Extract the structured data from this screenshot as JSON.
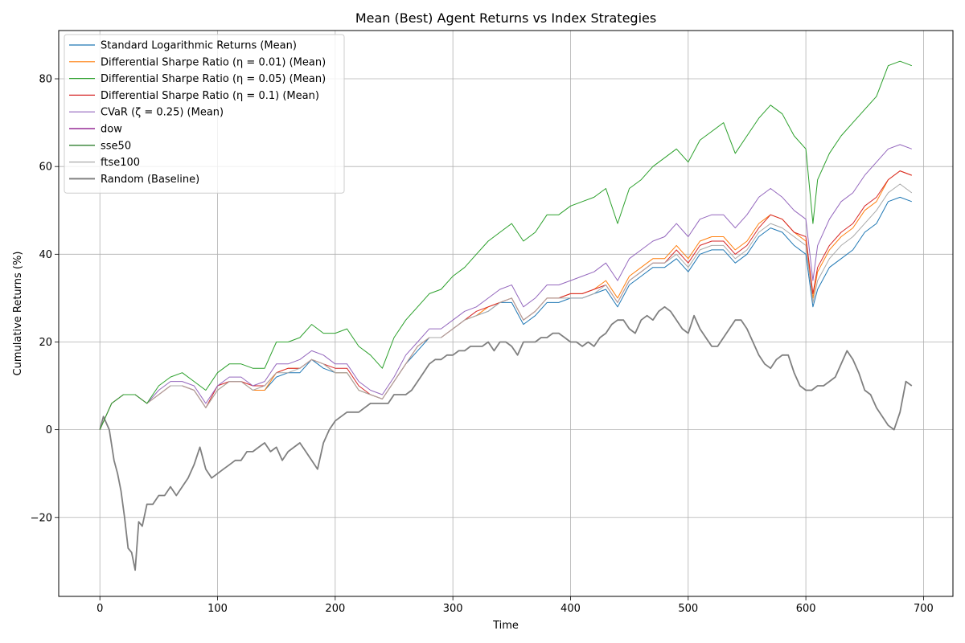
{
  "chart_data": {
    "type": "line",
    "title": "Mean (Best) Agent Returns vs Index Strategies",
    "xlabel": "Time",
    "ylabel": "Cumulative Returns (%)",
    "xlim": [
      -35,
      725
    ],
    "ylim": [
      -38,
      91
    ],
    "xticks": [
      0,
      100,
      200,
      300,
      400,
      500,
      600,
      700
    ],
    "yticks": [
      -20,
      0,
      20,
      40,
      60,
      80
    ],
    "grid": true,
    "legend_position": "top-left",
    "series": [
      {
        "name": "Standard Logarithmic Returns (Mean)",
        "color": "#1f77b4",
        "width": 1,
        "x": [
          0,
          5,
          10,
          20,
          30,
          40,
          50,
          60,
          70,
          80,
          90,
          100,
          110,
          120,
          130,
          140,
          150,
          160,
          170,
          180,
          190,
          200,
          210,
          220,
          230,
          240,
          250,
          260,
          270,
          280,
          290,
          300,
          310,
          320,
          330,
          340,
          350,
          360,
          370,
          380,
          390,
          400,
          410,
          420,
          430,
          440,
          450,
          460,
          470,
          480,
          490,
          500,
          510,
          520,
          530,
          540,
          550,
          560,
          570,
          580,
          590,
          600,
          606,
          610,
          620,
          630,
          640,
          650,
          660,
          670,
          680,
          690
        ],
        "values": [
          0,
          3,
          6,
          8,
          8,
          6,
          8,
          10,
          10,
          9,
          5,
          9,
          11,
          11,
          9,
          9,
          12,
          13,
          13,
          16,
          14,
          13,
          13,
          9,
          8,
          7,
          11,
          15,
          18,
          21,
          21,
          23,
          25,
          26,
          27,
          29,
          29,
          24,
          26,
          29,
          29,
          30,
          30,
          31,
          32,
          28,
          33,
          35,
          37,
          37,
          39,
          36,
          40,
          41,
          41,
          38,
          40,
          44,
          46,
          45,
          42,
          40,
          28,
          32,
          37,
          39,
          41,
          45,
          47,
          52,
          53,
          52
        ]
      },
      {
        "name": "Differential Sharpe Ratio (η = 0.01) (Mean)",
        "color": "#ff7f0e",
        "width": 1,
        "x": [
          0,
          5,
          10,
          20,
          30,
          40,
          50,
          60,
          70,
          80,
          90,
          100,
          110,
          120,
          130,
          140,
          150,
          160,
          170,
          180,
          190,
          200,
          210,
          220,
          230,
          240,
          250,
          260,
          270,
          280,
          290,
          300,
          310,
          320,
          330,
          340,
          350,
          360,
          370,
          380,
          390,
          400,
          410,
          420,
          430,
          440,
          450,
          460,
          470,
          480,
          490,
          500,
          510,
          520,
          530,
          540,
          550,
          560,
          570,
          580,
          590,
          600,
          606,
          610,
          620,
          630,
          640,
          650,
          660,
          670,
          680,
          690
        ],
        "values": [
          0,
          3,
          6,
          8,
          8,
          6,
          8,
          10,
          10,
          9,
          5,
          9,
          11,
          11,
          9,
          9,
          13,
          14,
          14,
          16,
          15,
          13,
          13,
          9,
          8,
          7,
          11,
          15,
          19,
          21,
          21,
          23,
          25,
          26,
          28,
          29,
          30,
          25,
          27,
          30,
          30,
          31,
          31,
          32,
          34,
          30,
          35,
          37,
          39,
          39,
          42,
          39,
          43,
          44,
          44,
          41,
          43,
          47,
          49,
          48,
          45,
          43,
          30,
          36,
          41,
          44,
          46,
          50,
          52,
          57,
          59,
          58
        ]
      },
      {
        "name": "Differential Sharpe Ratio (η = 0.05) (Mean)",
        "color": "#2ca02c",
        "width": 1,
        "x": [
          0,
          5,
          10,
          20,
          30,
          40,
          50,
          60,
          70,
          80,
          90,
          100,
          110,
          120,
          130,
          140,
          150,
          160,
          170,
          180,
          190,
          200,
          210,
          220,
          230,
          240,
          250,
          260,
          270,
          280,
          290,
          300,
          310,
          320,
          330,
          340,
          350,
          360,
          370,
          380,
          390,
          400,
          410,
          420,
          430,
          440,
          450,
          460,
          470,
          480,
          490,
          500,
          510,
          520,
          530,
          540,
          550,
          560,
          570,
          580,
          590,
          600,
          606,
          610,
          620,
          630,
          640,
          650,
          660,
          670,
          680,
          690
        ],
        "values": [
          0,
          3,
          6,
          8,
          8,
          6,
          10,
          12,
          13,
          11,
          9,
          13,
          15,
          15,
          14,
          14,
          20,
          20,
          21,
          24,
          22,
          22,
          23,
          19,
          17,
          14,
          21,
          25,
          28,
          31,
          32,
          35,
          37,
          40,
          43,
          45,
          47,
          43,
          45,
          49,
          49,
          51,
          52,
          53,
          55,
          47,
          55,
          57,
          60,
          62,
          64,
          61,
          66,
          68,
          70,
          63,
          67,
          71,
          74,
          72,
          67,
          64,
          47,
          57,
          63,
          67,
          70,
          73,
          76,
          83,
          84,
          83
        ]
      },
      {
        "name": "Differential Sharpe Ratio (η = 0.1) (Mean)",
        "color": "#d62728",
        "width": 1,
        "x": [
          0,
          5,
          10,
          20,
          30,
          40,
          50,
          60,
          70,
          80,
          90,
          100,
          110,
          120,
          130,
          140,
          150,
          160,
          170,
          180,
          190,
          200,
          210,
          220,
          230,
          240,
          250,
          260,
          270,
          280,
          290,
          300,
          310,
          320,
          330,
          340,
          350,
          360,
          370,
          380,
          390,
          400,
          410,
          420,
          430,
          440,
          450,
          460,
          470,
          480,
          490,
          500,
          510,
          520,
          530,
          540,
          550,
          560,
          570,
          580,
          590,
          600,
          606,
          610,
          620,
          630,
          640,
          650,
          660,
          670,
          680,
          690
        ],
        "values": [
          0,
          3,
          6,
          8,
          8,
          6,
          8,
          10,
          10,
          9,
          5,
          10,
          11,
          11,
          10,
          10,
          13,
          14,
          14,
          16,
          15,
          14,
          14,
          10,
          8,
          7,
          11,
          15,
          19,
          21,
          21,
          23,
          25,
          27,
          28,
          29,
          30,
          25,
          27,
          30,
          30,
          31,
          31,
          32,
          33,
          29,
          34,
          36,
          38,
          38,
          41,
          38,
          42,
          43,
          43,
          40,
          42,
          46,
          49,
          48,
          45,
          44,
          31,
          37,
          42,
          45,
          47,
          51,
          53,
          57,
          59,
          58
        ]
      },
      {
        "name": "CVaR (ζ = 0.25) (Mean)",
        "color": "#9467bd",
        "width": 1,
        "x": [
          0,
          5,
          10,
          20,
          30,
          40,
          50,
          60,
          70,
          80,
          90,
          100,
          110,
          120,
          130,
          140,
          150,
          160,
          170,
          180,
          190,
          200,
          210,
          220,
          230,
          240,
          250,
          260,
          270,
          280,
          290,
          300,
          310,
          320,
          330,
          340,
          350,
          360,
          370,
          380,
          390,
          400,
          410,
          420,
          430,
          440,
          450,
          460,
          470,
          480,
          490,
          500,
          510,
          520,
          530,
          540,
          550,
          560,
          570,
          580,
          590,
          600,
          606,
          610,
          620,
          630,
          640,
          650,
          660,
          670,
          680,
          690
        ],
        "values": [
          0,
          3,
          6,
          8,
          8,
          6,
          9,
          11,
          11,
          10,
          6,
          10,
          12,
          12,
          10,
          11,
          15,
          15,
          16,
          18,
          17,
          15,
          15,
          11,
          9,
          8,
          12,
          17,
          20,
          23,
          23,
          25,
          27,
          28,
          30,
          32,
          33,
          28,
          30,
          33,
          33,
          34,
          35,
          36,
          38,
          34,
          39,
          41,
          43,
          44,
          47,
          44,
          48,
          49,
          49,
          46,
          49,
          53,
          55,
          53,
          50,
          48,
          34,
          42,
          48,
          52,
          54,
          58,
          61,
          64,
          65,
          64
        ]
      },
      {
        "name": "dow",
        "color": "#800080",
        "width": 1,
        "x": [],
        "values": []
      },
      {
        "name": "sse50",
        "color": "#006400",
        "width": 1,
        "x": [],
        "values": []
      },
      {
        "name": "ftse100",
        "color": "#a9a9a9",
        "width": 1,
        "x": [
          0,
          5,
          10,
          20,
          30,
          40,
          50,
          60,
          70,
          80,
          90,
          100,
          110,
          120,
          130,
          140,
          150,
          160,
          170,
          180,
          190,
          200,
          210,
          220,
          230,
          240,
          250,
          260,
          270,
          280,
          290,
          300,
          310,
          320,
          330,
          340,
          350,
          360,
          370,
          380,
          390,
          400,
          410,
          420,
          430,
          440,
          450,
          460,
          470,
          480,
          490,
          500,
          510,
          520,
          530,
          540,
          550,
          560,
          570,
          580,
          590,
          600,
          606,
          610,
          620,
          630,
          640,
          650,
          660,
          670,
          680,
          690
        ],
        "values": [
          0,
          3,
          6,
          8,
          8,
          6,
          8,
          10,
          10,
          9,
          5,
          9,
          11,
          11,
          9,
          10,
          13,
          13,
          14,
          16,
          15,
          13,
          13,
          9,
          8,
          7,
          11,
          15,
          19,
          21,
          21,
          23,
          25,
          26,
          27,
          29,
          30,
          25,
          27,
          30,
          30,
          30,
          30,
          31,
          33,
          29,
          34,
          36,
          38,
          38,
          40,
          37,
          41,
          42,
          42,
          39,
          41,
          45,
          47,
          46,
          44,
          42,
          29,
          34,
          39,
          42,
          44,
          47,
          50,
          54,
          56,
          54
        ]
      },
      {
        "name": "Random (Baseline)",
        "color": "#808080",
        "width": 1.8,
        "x": [
          0,
          3,
          8,
          12,
          15,
          18,
          21,
          24,
          27,
          30,
          33,
          36,
          40,
          45,
          50,
          55,
          60,
          65,
          70,
          75,
          80,
          85,
          90,
          95,
          100,
          105,
          110,
          115,
          120,
          125,
          130,
          135,
          140,
          145,
          150,
          155,
          160,
          165,
          170,
          175,
          180,
          185,
          190,
          195,
          200,
          205,
          210,
          215,
          220,
          225,
          230,
          235,
          240,
          245,
          250,
          255,
          260,
          265,
          270,
          275,
          280,
          285,
          290,
          295,
          300,
          305,
          310,
          315,
          320,
          325,
          330,
          335,
          340,
          345,
          350,
          355,
          360,
          365,
          370,
          375,
          380,
          385,
          390,
          395,
          400,
          405,
          410,
          415,
          420,
          425,
          430,
          435,
          440,
          445,
          450,
          455,
          460,
          465,
          470,
          475,
          480,
          485,
          490,
          495,
          500,
          505,
          510,
          515,
          520,
          525,
          530,
          535,
          540,
          545,
          550,
          555,
          560,
          565,
          570,
          575,
          580,
          585,
          590,
          595,
          600,
          605,
          610,
          615,
          620,
          625,
          630,
          635,
          640,
          645,
          650,
          655,
          660,
          665,
          670,
          675,
          680,
          685,
          690
        ],
        "values": [
          0,
          3,
          0,
          -7,
          -10,
          -14,
          -20,
          -27,
          -28,
          -32,
          -21,
          -22,
          -17,
          -17,
          -15,
          -15,
          -13,
          -15,
          -13,
          -11,
          -8,
          -4,
          -9,
          -11,
          -10,
          -9,
          -8,
          -7,
          -7,
          -5,
          -5,
          -4,
          -3,
          -5,
          -4,
          -7,
          -5,
          -4,
          -3,
          -5,
          -7,
          -9,
          -3,
          0,
          2,
          3,
          4,
          4,
          4,
          5,
          6,
          6,
          6,
          6,
          8,
          8,
          8,
          9,
          11,
          13,
          15,
          16,
          16,
          17,
          17,
          18,
          18,
          19,
          19,
          19,
          20,
          18,
          20,
          20,
          19,
          17,
          20,
          20,
          20,
          21,
          21,
          22,
          22,
          21,
          20,
          20,
          19,
          20,
          19,
          21,
          22,
          24,
          25,
          25,
          23,
          22,
          25,
          26,
          25,
          27,
          28,
          27,
          25,
          23,
          22,
          26,
          23,
          21,
          19,
          19,
          21,
          23,
          25,
          25,
          23,
          20,
          17,
          15,
          14,
          16,
          17,
          17,
          13,
          10,
          9,
          9,
          10,
          10,
          11,
          12,
          15,
          18,
          16,
          13,
          9,
          8,
          5,
          3,
          1,
          0,
          4,
          11,
          10
        ]
      }
    ]
  }
}
